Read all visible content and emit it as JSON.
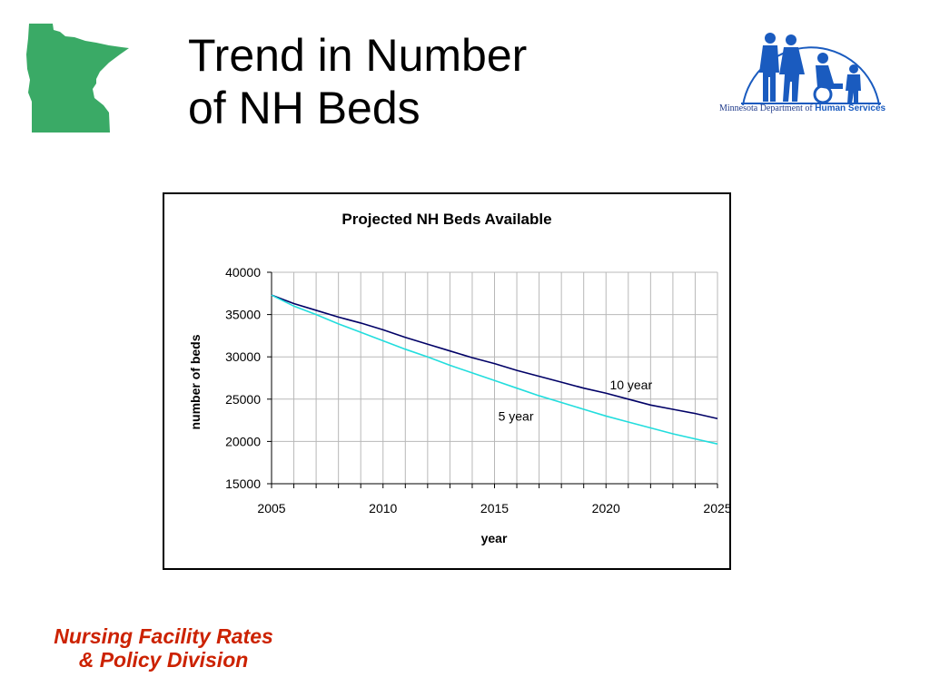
{
  "slide": {
    "title_line1": "Trend in Number",
    "title_line2": "of NH Beds",
    "footer_line1": "Nursing Facility Rates",
    "footer_line2": "& Policy Division",
    "logo_text_prefix": "Minnesota Department of",
    "logo_text_bold": "Human Services"
  },
  "colors": {
    "map_green": "#3aaa66",
    "logo_blue": "#1a5bbf",
    "footer_red": "#cc2200",
    "series_10yr": "#000066",
    "series_5yr": "#22dddd"
  },
  "chart_data": {
    "type": "line",
    "title": "Projected NH Beds Available",
    "xlabel": "year",
    "ylabel": "number of beds",
    "xlim": [
      2005,
      2025
    ],
    "ylim": [
      15000,
      40000
    ],
    "x_ticks": [
      2005,
      2010,
      2015,
      2020,
      2025
    ],
    "y_ticks": [
      15000,
      20000,
      25000,
      30000,
      35000,
      40000
    ],
    "grid": true,
    "x": [
      2005,
      2006,
      2007,
      2008,
      2009,
      2010,
      2011,
      2012,
      2013,
      2014,
      2015,
      2016,
      2017,
      2018,
      2019,
      2020,
      2021,
      2022,
      2023,
      2024,
      2025
    ],
    "series": [
      {
        "name": "10 year",
        "color": "#000066",
        "values": [
          37300,
          36300,
          35500,
          34700,
          34000,
          33200,
          32300,
          31500,
          30700,
          29900,
          29200,
          28400,
          27700,
          27000,
          26300,
          25700,
          25000,
          24300,
          23800,
          23300,
          22700
        ]
      },
      {
        "name": "5 year",
        "color": "#22dddd",
        "values": [
          37300,
          36000,
          35000,
          33900,
          32900,
          31900,
          30900,
          30000,
          29000,
          28100,
          27200,
          26300,
          25400,
          24600,
          23800,
          23000,
          22300,
          21600,
          20900,
          20300,
          19700
        ]
      }
    ],
    "annotations": [
      {
        "text": "10 year",
        "series": "10 year"
      },
      {
        "text": "5 year",
        "series": "5 year"
      }
    ]
  }
}
